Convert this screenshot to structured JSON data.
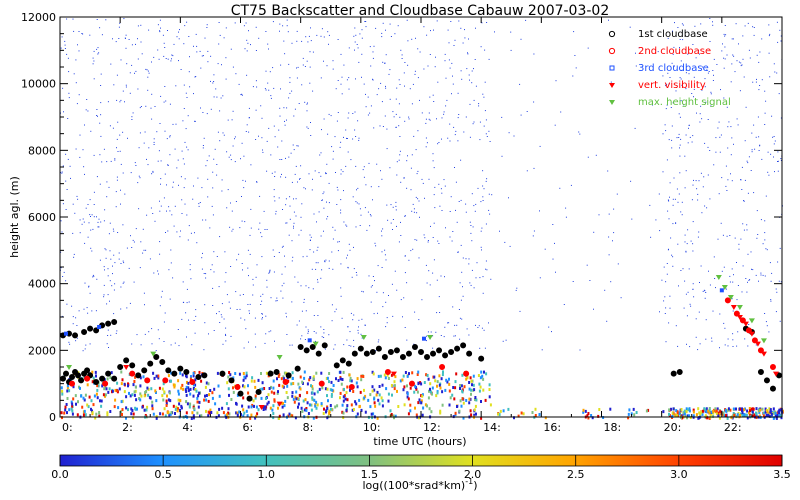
{
  "chart_data": {
    "type": "scatter",
    "title": "CT75 Backscatter and Cloudbase Cabauw 2007-03-02",
    "xlabel": "time UTC (hours)",
    "ylabel": "height agl. (m)",
    "xlim": [
      0,
      24
    ],
    "ylim": [
      0,
      12000
    ],
    "x_ticks": [
      "0:",
      "2:",
      "4:",
      "6:",
      "8:",
      "10:",
      "12:",
      "14:",
      "16:",
      "18:",
      "20:",
      "22:"
    ],
    "y_ticks": [
      "0",
      "2000",
      "4000",
      "6000",
      "8000",
      "10000",
      "12000"
    ],
    "colorbar": {
      "label": "log((100*srad*km)",
      "label_sup": "-1",
      "label_close": ")",
      "ticks": [
        "0.0",
        "0.5",
        "1.0",
        "1.5",
        "2.0",
        "2.5",
        "3.0",
        "3.5"
      ],
      "range": [
        0,
        3.5
      ],
      "colors": [
        "#2020d0",
        "#1e90ff",
        "#40c0c0",
        "#80c080",
        "#e0e020",
        "#ffa500",
        "#ff4000",
        "#e00000"
      ]
    },
    "legend": {
      "placement": "top-right",
      "entries": [
        {
          "name": "1st cloudbase",
          "color": "#000000",
          "marker": "o"
        },
        {
          "name": "2nd cloudbase",
          "color": "#ff0000",
          "marker": "o"
        },
        {
          "name": "3rd cloudbase",
          "color": "#1e50ff",
          "marker": "square"
        },
        {
          "name": "vert. visibility",
          "color": "#ff0000",
          "marker": "triangle-down"
        },
        {
          "name": "max. height signal",
          "color": "#60c040",
          "marker": "triangle-down"
        }
      ]
    },
    "series": [
      {
        "name": "1st cloudbase",
        "points": [
          [
            0.1,
            1150
          ],
          [
            0.2,
            1300
          ],
          [
            0.3,
            1050
          ],
          [
            0.4,
            1200
          ],
          [
            0.5,
            1350
          ],
          [
            0.6,
            1250
          ],
          [
            0.7,
            1100
          ],
          [
            0.8,
            1300
          ],
          [
            0.9,
            1400
          ],
          [
            1.0,
            1250
          ],
          [
            1.2,
            1050
          ],
          [
            1.4,
            1150
          ],
          [
            1.6,
            1300
          ],
          [
            1.8,
            1150
          ],
          [
            0.1,
            2450
          ],
          [
            0.3,
            2500
          ],
          [
            0.5,
            2450
          ],
          [
            0.8,
            2550
          ],
          [
            1.0,
            2650
          ],
          [
            1.2,
            2600
          ],
          [
            1.4,
            2750
          ],
          [
            1.6,
            2800
          ],
          [
            1.8,
            2850
          ],
          [
            2.0,
            1500
          ],
          [
            2.2,
            1700
          ],
          [
            2.4,
            1550
          ],
          [
            2.6,
            1250
          ],
          [
            2.8,
            1400
          ],
          [
            3.0,
            1600
          ],
          [
            3.2,
            1800
          ],
          [
            3.4,
            1650
          ],
          [
            3.6,
            1400
          ],
          [
            3.8,
            1300
          ],
          [
            4.0,
            1450
          ],
          [
            4.2,
            1350
          ],
          [
            4.6,
            1200
          ],
          [
            4.8,
            1250
          ],
          [
            5.4,
            1300
          ],
          [
            5.7,
            1100
          ],
          [
            6.0,
            700
          ],
          [
            6.3,
            550
          ],
          [
            6.6,
            750
          ],
          [
            7.0,
            1300
          ],
          [
            7.2,
            1350
          ],
          [
            7.6,
            1250
          ],
          [
            7.9,
            1450
          ],
          [
            8.0,
            2100
          ],
          [
            8.2,
            2000
          ],
          [
            8.4,
            2100
          ],
          [
            8.6,
            1900
          ],
          [
            8.8,
            2150
          ],
          [
            9.2,
            1550
          ],
          [
            9.4,
            1700
          ],
          [
            9.6,
            1600
          ],
          [
            9.8,
            1900
          ],
          [
            10.0,
            2050
          ],
          [
            10.2,
            1900
          ],
          [
            10.4,
            1950
          ],
          [
            10.6,
            2050
          ],
          [
            10.8,
            1800
          ],
          [
            11.0,
            1950
          ],
          [
            11.2,
            2000
          ],
          [
            11.4,
            1800
          ],
          [
            11.6,
            1900
          ],
          [
            11.8,
            2100
          ],
          [
            12.0,
            1950
          ],
          [
            12.2,
            1800
          ],
          [
            12.4,
            1900
          ],
          [
            12.6,
            2000
          ],
          [
            12.8,
            1850
          ],
          [
            13.0,
            1950
          ],
          [
            13.2,
            2050
          ],
          [
            13.4,
            2150
          ],
          [
            13.6,
            1900
          ],
          [
            14.0,
            1750
          ],
          [
            20.4,
            1300
          ],
          [
            20.6,
            1350
          ],
          [
            22.8,
            2650
          ],
          [
            23.0,
            2550
          ],
          [
            23.3,
            1350
          ],
          [
            23.5,
            1100
          ],
          [
            23.7,
            850
          ],
          [
            23.9,
            1250
          ]
        ]
      },
      {
        "name": "2nd cloudbase",
        "points": [
          [
            0.4,
            1000
          ],
          [
            0.9,
            1150
          ],
          [
            1.5,
            1000
          ],
          [
            2.4,
            1300
          ],
          [
            2.9,
            1100
          ],
          [
            3.5,
            1100
          ],
          [
            4.4,
            1050
          ],
          [
            5.9,
            900
          ],
          [
            7.5,
            1050
          ],
          [
            8.7,
            1000
          ],
          [
            9.7,
            900
          ],
          [
            10.9,
            1350
          ],
          [
            11.7,
            1000
          ],
          [
            12.7,
            1500
          ],
          [
            13.5,
            1300
          ],
          [
            22.2,
            3500
          ],
          [
            22.5,
            3100
          ],
          [
            22.7,
            2900
          ],
          [
            22.9,
            2600
          ],
          [
            23.1,
            2300
          ],
          [
            23.3,
            2000
          ],
          [
            23.7,
            1500
          ]
        ]
      },
      {
        "name": "3rd cloudbase",
        "points": [
          [
            0.2,
            2500
          ],
          [
            1.3,
            2700
          ],
          [
            8.3,
            2300
          ],
          [
            12.1,
            2350
          ],
          [
            22.0,
            3800
          ]
        ]
      },
      {
        "name": "vert. visibility",
        "points": [
          [
            2.2,
            1500
          ],
          [
            6.7,
            300
          ],
          [
            7.3,
            400
          ],
          [
            11.1,
            1300
          ],
          [
            22.4,
            3300
          ],
          [
            22.6,
            3000
          ],
          [
            22.8,
            2800
          ],
          [
            23.0,
            2500
          ],
          [
            23.2,
            2200
          ],
          [
            23.4,
            1900
          ],
          [
            23.8,
            1300
          ]
        ]
      },
      {
        "name": "max. height signal",
        "points": [
          [
            0.3,
            1500
          ],
          [
            3.1,
            1900
          ],
          [
            7.3,
            1800
          ],
          [
            8.5,
            2200
          ],
          [
            10.1,
            2400
          ],
          [
            12.3,
            2400
          ],
          [
            21.9,
            4200
          ],
          [
            22.1,
            3900
          ],
          [
            22.3,
            3600
          ],
          [
            22.6,
            3300
          ],
          [
            23.0,
            2900
          ],
          [
            23.4,
            2300
          ]
        ]
      }
    ]
  }
}
